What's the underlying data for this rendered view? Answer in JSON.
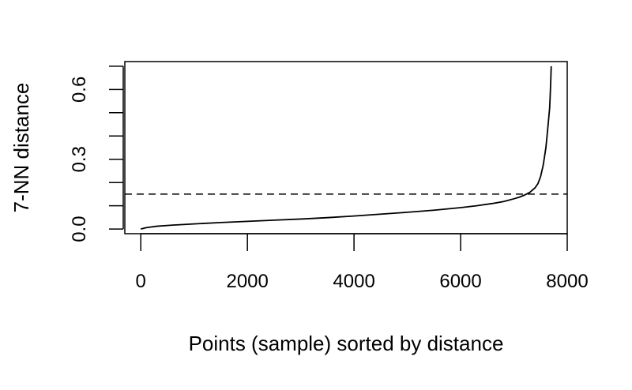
{
  "chart_data": {
    "type": "line",
    "title": "",
    "xlabel": "Points (sample) sorted by distance",
    "ylabel": "7-NN distance",
    "xlim": [
      -300,
      8000
    ],
    "ylim": [
      -0.02,
      0.72
    ],
    "x_ticks": [
      0,
      2000,
      4000,
      6000,
      8000
    ],
    "x_tick_labels": [
      "0",
      "2000",
      "4000",
      "6000",
      "8000"
    ],
    "y_ticks": [
      0.0,
      0.1,
      0.2,
      0.3,
      0.4,
      0.5,
      0.6,
      0.7
    ],
    "y_tick_labels": [
      "0.0",
      "",
      "",
      "0.3",
      "",
      "",
      "0.6",
      ""
    ],
    "grid": false,
    "line_color": "#000000",
    "series": [
      {
        "x": [
          0,
          100,
          300,
          600,
          1000,
          1500,
          2000,
          2500,
          3000,
          3500,
          4000,
          4500,
          5000,
          5500,
          6000,
          6300,
          6600,
          6800,
          7000,
          7100,
          7200,
          7300,
          7400,
          7450,
          7500,
          7550,
          7600,
          7630,
          7650,
          7670,
          7680,
          7690,
          7700
        ],
        "y": [
          0.0,
          0.006,
          0.012,
          0.017,
          0.022,
          0.028,
          0.033,
          0.038,
          0.043,
          0.049,
          0.056,
          0.064,
          0.072,
          0.081,
          0.092,
          0.1,
          0.11,
          0.118,
          0.13,
          0.137,
          0.146,
          0.158,
          0.178,
          0.195,
          0.225,
          0.275,
          0.35,
          0.42,
          0.47,
          0.52,
          0.57,
          0.63,
          0.7
        ]
      }
    ],
    "reference_lines": [
      {
        "orientation": "horizontal",
        "y": 0.15,
        "style": "dashed"
      }
    ]
  }
}
